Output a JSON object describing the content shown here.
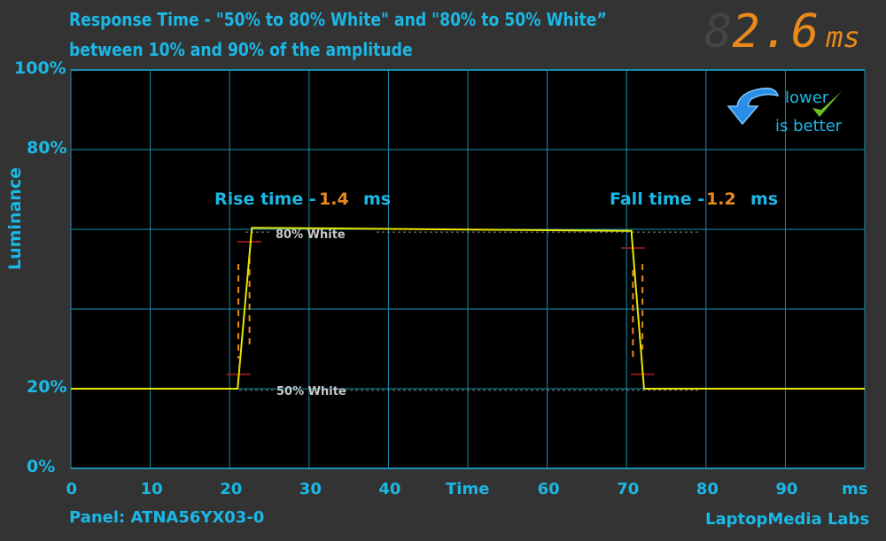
{
  "title_line1": "Response Time - \"50% to 80% White\" and \"80% to 50% White”",
  "title_line2": "between 10% and 90% of the amplitude",
  "total_display": {
    "value": "2.6",
    "unit": "ms"
  },
  "badge": {
    "line1": "lower",
    "line2": "is better"
  },
  "footer": {
    "panel": "Panel: ATNA56YX03-0",
    "brand": "LaptopMedia Labs"
  },
  "colors": {
    "axis_text": "#1bb8e6",
    "grid": "#1a8fb0",
    "trace": "#e8e800",
    "accent": "#e8891a",
    "marker": "#8b1a1a"
  },
  "chart_data": {
    "type": "line",
    "xlabel": "Time",
    "xunit": "ms",
    "ylabel": "Luminance",
    "xlim": [
      0,
      100
    ],
    "ylim": [
      0,
      100
    ],
    "xticks": [
      "0",
      "10",
      "20",
      "30",
      "40",
      "",
      "60",
      "70",
      "80",
      "90"
    ],
    "yticks": [
      {
        "value": 100,
        "label": "100%"
      },
      {
        "value": 80,
        "label": "80%"
      },
      {
        "value": 20,
        "label": "20%"
      },
      {
        "value": 0,
        "label": "0%"
      }
    ],
    "grid": true,
    "series": [
      {
        "x": [
          0,
          21.0,
          22.8,
          70.6,
          72.2,
          100
        ],
        "y": [
          20,
          20,
          60.4,
          59.6,
          20,
          20
        ]
      }
    ],
    "reference_lines": [
      {
        "label": "80% White",
        "y": 59.3
      },
      {
        "label": "50% White",
        "y": 19.6
      }
    ],
    "annotations": {
      "rise": {
        "label": "Rise time -",
        "value": "1.4",
        "unit": "ms",
        "start": 21.1,
        "end": 22.5,
        "low": 23.6,
        "high": 56.9
      },
      "fall": {
        "label": "Fall time -",
        "value": "1.2",
        "unit": "ms",
        "start": 70.8,
        "end": 72.0,
        "high": 55.3,
        "low": 23.6
      }
    }
  }
}
